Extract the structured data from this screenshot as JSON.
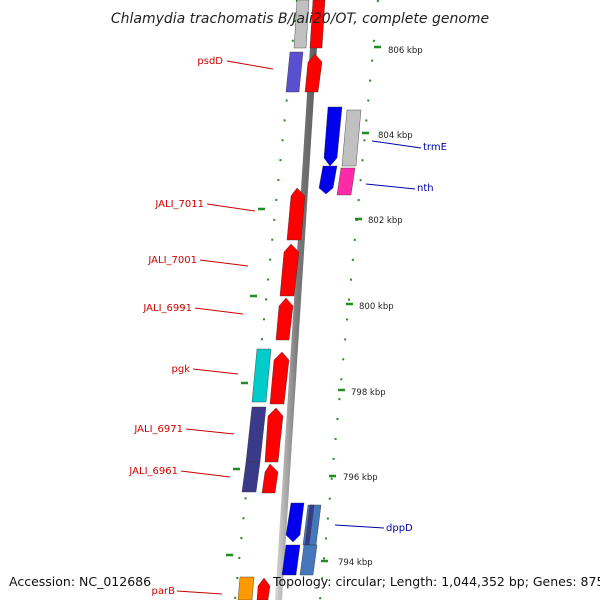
{
  "title": "Chlamydia trachomatis B/Jali20/OT, complete genome",
  "footer": {
    "accession": "Accession: NC_012686",
    "topology": "Topology: circular; Length: 1,044,352 bp; Genes: 875"
  },
  "scale_labels": [
    "806 kbp",
    "804 kbp",
    "802 kbp",
    "800 kbp",
    "798 kbp",
    "796 kbp",
    "794 kbp"
  ],
  "left_labels": [
    "psdD",
    "JALI_7011",
    "JALI_7001",
    "JALI_6991",
    "pgk",
    "JALI_6971",
    "JALI_6961",
    "parB"
  ],
  "right_labels": [
    "trmE",
    "nth",
    "dppD"
  ],
  "colors": {
    "red": "#ff0000",
    "blue": "#0000ee",
    "gray": "#c0c0c0",
    "purple": "#5a4fcf",
    "navy": "#3a3a8a",
    "cyan": "#00cccc",
    "magenta": "#ff2aa8",
    "orange": "#ff9900",
    "steel": "#4477bb",
    "tick": "#228b22",
    "label_red": "#cc0000",
    "label_blue": "#0000aa"
  }
}
